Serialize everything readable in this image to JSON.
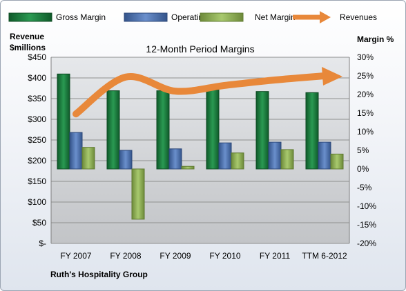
{
  "company": "Ruth's Hospitality Group",
  "chart_data": {
    "type": "bar",
    "title": "12-Month Period Margins",
    "categories": [
      "FY 2007",
      "FY 2008",
      "FY 2009",
      "FY 2010",
      "FY 2011",
      "TTM 6-2012"
    ],
    "left_axis": {
      "label_line1": "Revenue",
      "label_line2": "$millions",
      "ticks": [
        "$450",
        "$400",
        "$350",
        "$300",
        "$250",
        "$200",
        "$150",
        "$100",
        "$50",
        "$-"
      ],
      "range": [
        0,
        450
      ]
    },
    "right_axis": {
      "label": "Margin %",
      "ticks": [
        "30%",
        "25%",
        "20%",
        "15%",
        "10%",
        "5%",
        "0%",
        "-5%",
        "-10%",
        "-15%",
        "-20%"
      ],
      "range": [
        -20,
        30
      ]
    },
    "series": [
      {
        "name": "Gross Margin",
        "type": "bar",
        "axis": "right",
        "color": "#1f7a3f",
        "values": [
          25.5,
          21.0,
          21.0,
          21.2,
          20.8,
          20.5
        ]
      },
      {
        "name": "Operating Margin",
        "type": "bar",
        "axis": "right",
        "color": "#4a6fb0",
        "values": [
          9.8,
          5.0,
          5.4,
          7.0,
          7.2,
          7.2
        ]
      },
      {
        "name": "Net Margin",
        "type": "bar",
        "axis": "right",
        "color": "#8fb254",
        "values": [
          5.8,
          -13.5,
          0.7,
          4.3,
          5.2,
          4.0
        ]
      },
      {
        "name": "Revenues",
        "type": "line",
        "axis": "left",
        "color": "#e8883a",
        "values": [
          313,
          402,
          368,
          382,
          395,
          405
        ]
      }
    ],
    "grid": true,
    "legend_position": "top"
  },
  "colors": {
    "plot_top": "#e3e5e8",
    "plot_bottom": "#c4c6c9",
    "gridline": "#8f8f8f"
  }
}
